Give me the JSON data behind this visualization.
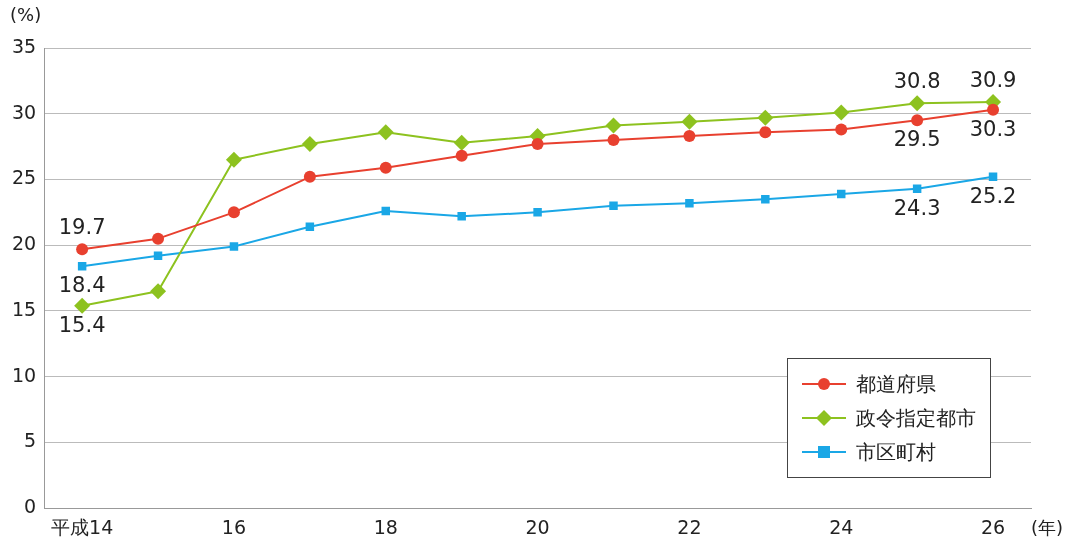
{
  "chart_data": {
    "type": "line",
    "ylabel": "(%)",
    "xlabel": "(年)",
    "categories": [
      "平成14",
      null,
      "16",
      null,
      "18",
      null,
      "20",
      null,
      "22",
      null,
      "24",
      null,
      "26"
    ],
    "ylim": [
      0,
      35
    ],
    "yticks": [
      0,
      5,
      10,
      15,
      20,
      25,
      30,
      35
    ],
    "grid": "y",
    "legend": "bottom right",
    "line_style": "solid",
    "series": [
      {
        "name": "都道府県",
        "color": "#e8402f",
        "marker": "circle",
        "values": [
          19.7,
          20.5,
          22.5,
          25.2,
          25.9,
          26.8,
          27.7,
          28.0,
          28.3,
          28.6,
          28.8,
          29.5,
          30.3
        ],
        "value_labels": [
          "19.7",
          null,
          null,
          null,
          null,
          null,
          null,
          null,
          null,
          null,
          null,
          "29.5",
          "30.3"
        ]
      },
      {
        "name": "政令指定都市",
        "color": "#8dc21f",
        "marker": "diamond",
        "values": [
          15.4,
          16.5,
          26.5,
          27.7,
          28.6,
          27.8,
          28.3,
          29.1,
          29.4,
          29.7,
          30.1,
          30.8,
          30.9
        ],
        "value_labels": [
          "15.4",
          null,
          null,
          null,
          null,
          null,
          null,
          null,
          null,
          null,
          null,
          "30.8",
          "30.9"
        ]
      },
      {
        "name": "市区町村",
        "color": "#1aa7e6",
        "marker": "square",
        "values": [
          18.4,
          19.2,
          19.9,
          21.4,
          22.6,
          22.2,
          22.5,
          23.0,
          23.2,
          23.5,
          23.9,
          24.3,
          25.2
        ],
        "value_labels": [
          "18.4",
          null,
          null,
          null,
          null,
          null,
          null,
          null,
          null,
          null,
          null,
          "24.3",
          "25.2"
        ]
      }
    ]
  }
}
